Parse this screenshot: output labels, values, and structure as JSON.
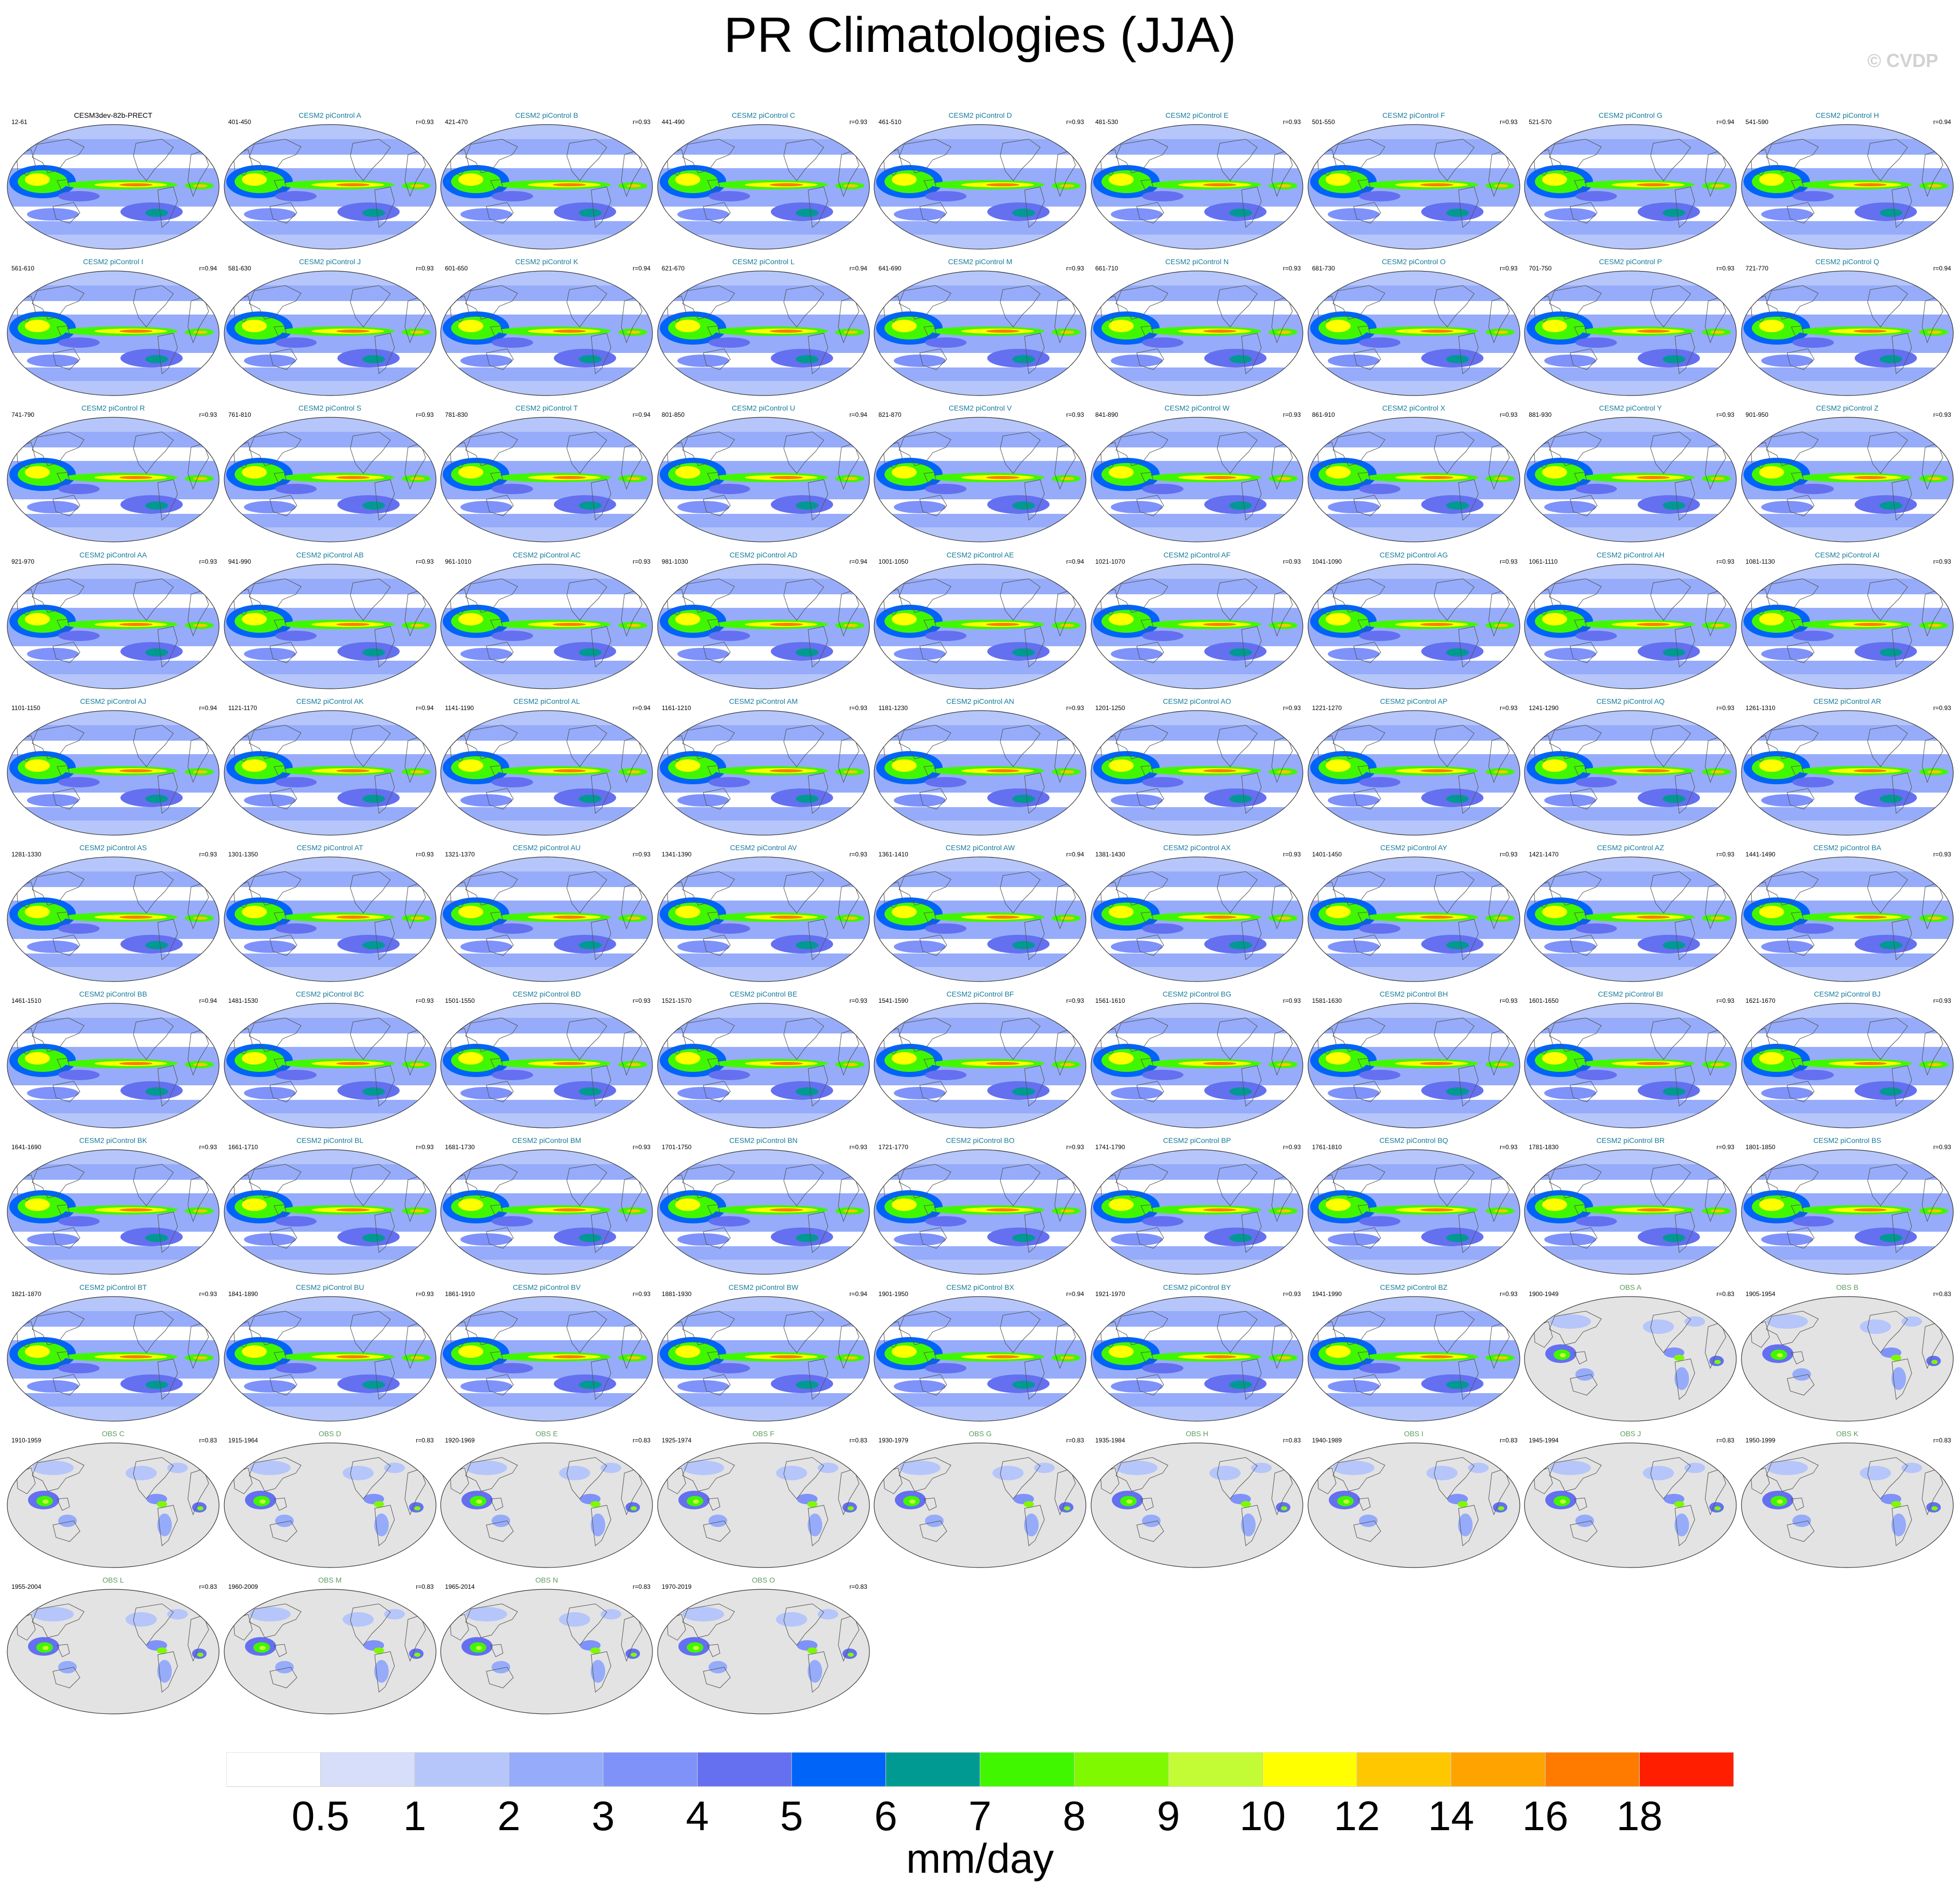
{
  "title": "PR Climatologies (JJA)",
  "watermark": "© CVDP",
  "colorbar": {
    "labels": [
      "0.5",
      "1",
      "2",
      "3",
      "4",
      "5",
      "6",
      "7",
      "8",
      "9",
      "10",
      "12",
      "14",
      "16",
      "18"
    ],
    "colors": [
      "#ffffff",
      "#d6defa",
      "#b6c6fa",
      "#96acfa",
      "#7e92fa",
      "#6470f0",
      "#0064f9",
      "#009a93",
      "#41f700",
      "#7ff900",
      "#c3fc34",
      "#ffff00",
      "#ffc700",
      "#ffa300",
      "#ff7b00",
      "#ff1e00"
    ],
    "units": "mm/day"
  },
  "panels": [
    {
      "name": "CESM3dev-82b-PRECT",
      "years": "12-61",
      "corr": "",
      "kind": "ref"
    },
    {
      "name": "CESM2 piControl A",
      "years": "401-450",
      "corr": "r=0.93",
      "kind": "model"
    },
    {
      "name": "CESM2 piControl B",
      "years": "421-470",
      "corr": "r=0.93",
      "kind": "model"
    },
    {
      "name": "CESM2 piControl C",
      "years": "441-490",
      "corr": "r=0.93",
      "kind": "model"
    },
    {
      "name": "CESM2 piControl D",
      "years": "461-510",
      "corr": "r=0.93",
      "kind": "model"
    },
    {
      "name": "CESM2 piControl E",
      "years": "481-530",
      "corr": "r=0.93",
      "kind": "model"
    },
    {
      "name": "CESM2 piControl F",
      "years": "501-550",
      "corr": "r=0.93",
      "kind": "model"
    },
    {
      "name": "CESM2 piControl G",
      "years": "521-570",
      "corr": "r=0.94",
      "kind": "model"
    },
    {
      "name": "CESM2 piControl H",
      "years": "541-590",
      "corr": "r=0.94",
      "kind": "model"
    },
    {
      "name": "CESM2 piControl I",
      "years": "561-610",
      "corr": "r=0.94",
      "kind": "model"
    },
    {
      "name": "CESM2 piControl J",
      "years": "581-630",
      "corr": "r=0.93",
      "kind": "model"
    },
    {
      "name": "CESM2 piControl K",
      "years": "601-650",
      "corr": "r=0.94",
      "kind": "model"
    },
    {
      "name": "CESM2 piControl L",
      "years": "621-670",
      "corr": "r=0.94",
      "kind": "model"
    },
    {
      "name": "CESM2 piControl M",
      "years": "641-690",
      "corr": "r=0.93",
      "kind": "model"
    },
    {
      "name": "CESM2 piControl N",
      "years": "661-710",
      "corr": "r=0.93",
      "kind": "model"
    },
    {
      "name": "CESM2 piControl O",
      "years": "681-730",
      "corr": "r=0.93",
      "kind": "model"
    },
    {
      "name": "CESM2 piControl P",
      "years": "701-750",
      "corr": "r=0.93",
      "kind": "model"
    },
    {
      "name": "CESM2 piControl Q",
      "years": "721-770",
      "corr": "r=0.94",
      "kind": "model"
    },
    {
      "name": "CESM2 piControl R",
      "years": "741-790",
      "corr": "r=0.93",
      "kind": "model"
    },
    {
      "name": "CESM2 piControl S",
      "years": "761-810",
      "corr": "r=0.93",
      "kind": "model"
    },
    {
      "name": "CESM2 piControl T",
      "years": "781-830",
      "corr": "r=0.94",
      "kind": "model"
    },
    {
      "name": "CESM2 piControl U",
      "years": "801-850",
      "corr": "r=0.94",
      "kind": "model"
    },
    {
      "name": "CESM2 piControl V",
      "years": "821-870",
      "corr": "r=0.93",
      "kind": "model"
    },
    {
      "name": "CESM2 piControl W",
      "years": "841-890",
      "corr": "r=0.93",
      "kind": "model"
    },
    {
      "name": "CESM2 piControl X",
      "years": "861-910",
      "corr": "r=0.93",
      "kind": "model"
    },
    {
      "name": "CESM2 piControl Y",
      "years": "881-930",
      "corr": "r=0.93",
      "kind": "model"
    },
    {
      "name": "CESM2 piControl Z",
      "years": "901-950",
      "corr": "r=0.93",
      "kind": "model"
    },
    {
      "name": "CESM2 piControl AA",
      "years": "921-970",
      "corr": "r=0.93",
      "kind": "model"
    },
    {
      "name": "CESM2 piControl AB",
      "years": "941-990",
      "corr": "r=0.93",
      "kind": "model"
    },
    {
      "name": "CESM2 piControl AC",
      "years": "961-1010",
      "corr": "r=0.93",
      "kind": "model"
    },
    {
      "name": "CESM2 piControl AD",
      "years": "981-1030",
      "corr": "r=0.94",
      "kind": "model"
    },
    {
      "name": "CESM2 piControl AE",
      "years": "1001-1050",
      "corr": "r=0.94",
      "kind": "model"
    },
    {
      "name": "CESM2 piControl AF",
      "years": "1021-1070",
      "corr": "r=0.93",
      "kind": "model"
    },
    {
      "name": "CESM2 piControl AG",
      "years": "1041-1090",
      "corr": "r=0.93",
      "kind": "model"
    },
    {
      "name": "CESM2 piControl AH",
      "years": "1061-1110",
      "corr": "r=0.93",
      "kind": "model"
    },
    {
      "name": "CESM2 piControl AI",
      "years": "1081-1130",
      "corr": "r=0.93",
      "kind": "model"
    },
    {
      "name": "CESM2 piControl AJ",
      "years": "1101-1150",
      "corr": "r=0.94",
      "kind": "model"
    },
    {
      "name": "CESM2 piControl AK",
      "years": "1121-1170",
      "corr": "r=0.94",
      "kind": "model"
    },
    {
      "name": "CESM2 piControl AL",
      "years": "1141-1190",
      "corr": "r=0.94",
      "kind": "model"
    },
    {
      "name": "CESM2 piControl AM",
      "years": "1161-1210",
      "corr": "r=0.93",
      "kind": "model"
    },
    {
      "name": "CESM2 piControl AN",
      "years": "1181-1230",
      "corr": "r=0.93",
      "kind": "model"
    },
    {
      "name": "CESM2 piControl AO",
      "years": "1201-1250",
      "corr": "r=0.93",
      "kind": "model"
    },
    {
      "name": "CESM2 piControl AP",
      "years": "1221-1270",
      "corr": "r=0.93",
      "kind": "model"
    },
    {
      "name": "CESM2 piControl AQ",
      "years": "1241-1290",
      "corr": "r=0.93",
      "kind": "model"
    },
    {
      "name": "CESM2 piControl AR",
      "years": "1261-1310",
      "corr": "r=0.93",
      "kind": "model"
    },
    {
      "name": "CESM2 piControl AS",
      "years": "1281-1330",
      "corr": "r=0.93",
      "kind": "model"
    },
    {
      "name": "CESM2 piControl AT",
      "years": "1301-1350",
      "corr": "r=0.93",
      "kind": "model"
    },
    {
      "name": "CESM2 piControl AU",
      "years": "1321-1370",
      "corr": "r=0.93",
      "kind": "model"
    },
    {
      "name": "CESM2 piControl AV",
      "years": "1341-1390",
      "corr": "r=0.93",
      "kind": "model"
    },
    {
      "name": "CESM2 piControl AW",
      "years": "1361-1410",
      "corr": "r=0.94",
      "kind": "model"
    },
    {
      "name": "CESM2 piControl AX",
      "years": "1381-1430",
      "corr": "r=0.93",
      "kind": "model"
    },
    {
      "name": "CESM2 piControl AY",
      "years": "1401-1450",
      "corr": "r=0.93",
      "kind": "model"
    },
    {
      "name": "CESM2 piControl AZ",
      "years": "1421-1470",
      "corr": "r=0.93",
      "kind": "model"
    },
    {
      "name": "CESM2 piControl BA",
      "years": "1441-1490",
      "corr": "r=0.93",
      "kind": "model"
    },
    {
      "name": "CESM2 piControl BB",
      "years": "1461-1510",
      "corr": "r=0.94",
      "kind": "model"
    },
    {
      "name": "CESM2 piControl BC",
      "years": "1481-1530",
      "corr": "r=0.93",
      "kind": "model"
    },
    {
      "name": "CESM2 piControl BD",
      "years": "1501-1550",
      "corr": "r=0.93",
      "kind": "model"
    },
    {
      "name": "CESM2 piControl BE",
      "years": "1521-1570",
      "corr": "r=0.93",
      "kind": "model"
    },
    {
      "name": "CESM2 piControl BF",
      "years": "1541-1590",
      "corr": "r=0.93",
      "kind": "model"
    },
    {
      "name": "CESM2 piControl BG",
      "years": "1561-1610",
      "corr": "r=0.93",
      "kind": "model"
    },
    {
      "name": "CESM2 piControl BH",
      "years": "1581-1630",
      "corr": "r=0.93",
      "kind": "model"
    },
    {
      "name": "CESM2 piControl BI",
      "years": "1601-1650",
      "corr": "r=0.93",
      "kind": "model"
    },
    {
      "name": "CESM2 piControl BJ",
      "years": "1621-1670",
      "corr": "r=0.93",
      "kind": "model"
    },
    {
      "name": "CESM2 piControl BK",
      "years": "1641-1690",
      "corr": "r=0.93",
      "kind": "model"
    },
    {
      "name": "CESM2 piControl BL",
      "years": "1661-1710",
      "corr": "r=0.93",
      "kind": "model"
    },
    {
      "name": "CESM2 piControl BM",
      "years": "1681-1730",
      "corr": "r=0.93",
      "kind": "model"
    },
    {
      "name": "CESM2 piControl BN",
      "years": "1701-1750",
      "corr": "r=0.93",
      "kind": "model"
    },
    {
      "name": "CESM2 piControl BO",
      "years": "1721-1770",
      "corr": "r=0.93",
      "kind": "model"
    },
    {
      "name": "CESM2 piControl BP",
      "years": "1741-1790",
      "corr": "r=0.93",
      "kind": "model"
    },
    {
      "name": "CESM2 piControl BQ",
      "years": "1761-1810",
      "corr": "r=0.93",
      "kind": "model"
    },
    {
      "name": "CESM2 piControl BR",
      "years": "1781-1830",
      "corr": "r=0.93",
      "kind": "model"
    },
    {
      "name": "CESM2 piControl BS",
      "years": "1801-1850",
      "corr": "r=0.93",
      "kind": "model"
    },
    {
      "name": "CESM2 piControl BT",
      "years": "1821-1870",
      "corr": "r=0.93",
      "kind": "model"
    },
    {
      "name": "CESM2 piControl BU",
      "years": "1841-1890",
      "corr": "r=0.93",
      "kind": "model"
    },
    {
      "name": "CESM2 piControl BV",
      "years": "1861-1910",
      "corr": "r=0.93",
      "kind": "model"
    },
    {
      "name": "CESM2 piControl BW",
      "years": "1881-1930",
      "corr": "r=0.94",
      "kind": "model"
    },
    {
      "name": "CESM2 piControl BX",
      "years": "1901-1950",
      "corr": "r=0.94",
      "kind": "model"
    },
    {
      "name": "CESM2 piControl BY",
      "years": "1921-1970",
      "corr": "r=0.93",
      "kind": "model"
    },
    {
      "name": "CESM2 piControl BZ",
      "years": "1941-1990",
      "corr": "r=0.93",
      "kind": "model"
    },
    {
      "name": "OBS A",
      "years": "1900-1949",
      "corr": "r=0.83",
      "kind": "obs"
    },
    {
      "name": "OBS B",
      "years": "1905-1954",
      "corr": "r=0.83",
      "kind": "obs"
    },
    {
      "name": "OBS C",
      "years": "1910-1959",
      "corr": "r=0.83",
      "kind": "obs"
    },
    {
      "name": "OBS D",
      "years": "1915-1964",
      "corr": "r=0.83",
      "kind": "obs"
    },
    {
      "name": "OBS E",
      "years": "1920-1969",
      "corr": "r=0.83",
      "kind": "obs"
    },
    {
      "name": "OBS F",
      "years": "1925-1974",
      "corr": "r=0.83",
      "kind": "obs"
    },
    {
      "name": "OBS G",
      "years": "1930-1979",
      "corr": "r=0.83",
      "kind": "obs"
    },
    {
      "name": "OBS H",
      "years": "1935-1984",
      "corr": "r=0.83",
      "kind": "obs"
    },
    {
      "name": "OBS I",
      "years": "1940-1989",
      "corr": "r=0.83",
      "kind": "obs"
    },
    {
      "name": "OBS J",
      "years": "1945-1994",
      "corr": "r=0.83",
      "kind": "obs"
    },
    {
      "name": "OBS K",
      "years": "1950-1999",
      "corr": "r=0.83",
      "kind": "obs"
    },
    {
      "name": "OBS L",
      "years": "1955-2004",
      "corr": "r=0.83",
      "kind": "obs"
    },
    {
      "name": "OBS M",
      "years": "1960-2009",
      "corr": "r=0.83",
      "kind": "obs"
    },
    {
      "name": "OBS N",
      "years": "1965-2014",
      "corr": "r=0.83",
      "kind": "obs"
    },
    {
      "name": "OBS O",
      "years": "1970-2019",
      "corr": "r=0.83",
      "kind": "obs"
    }
  ]
}
